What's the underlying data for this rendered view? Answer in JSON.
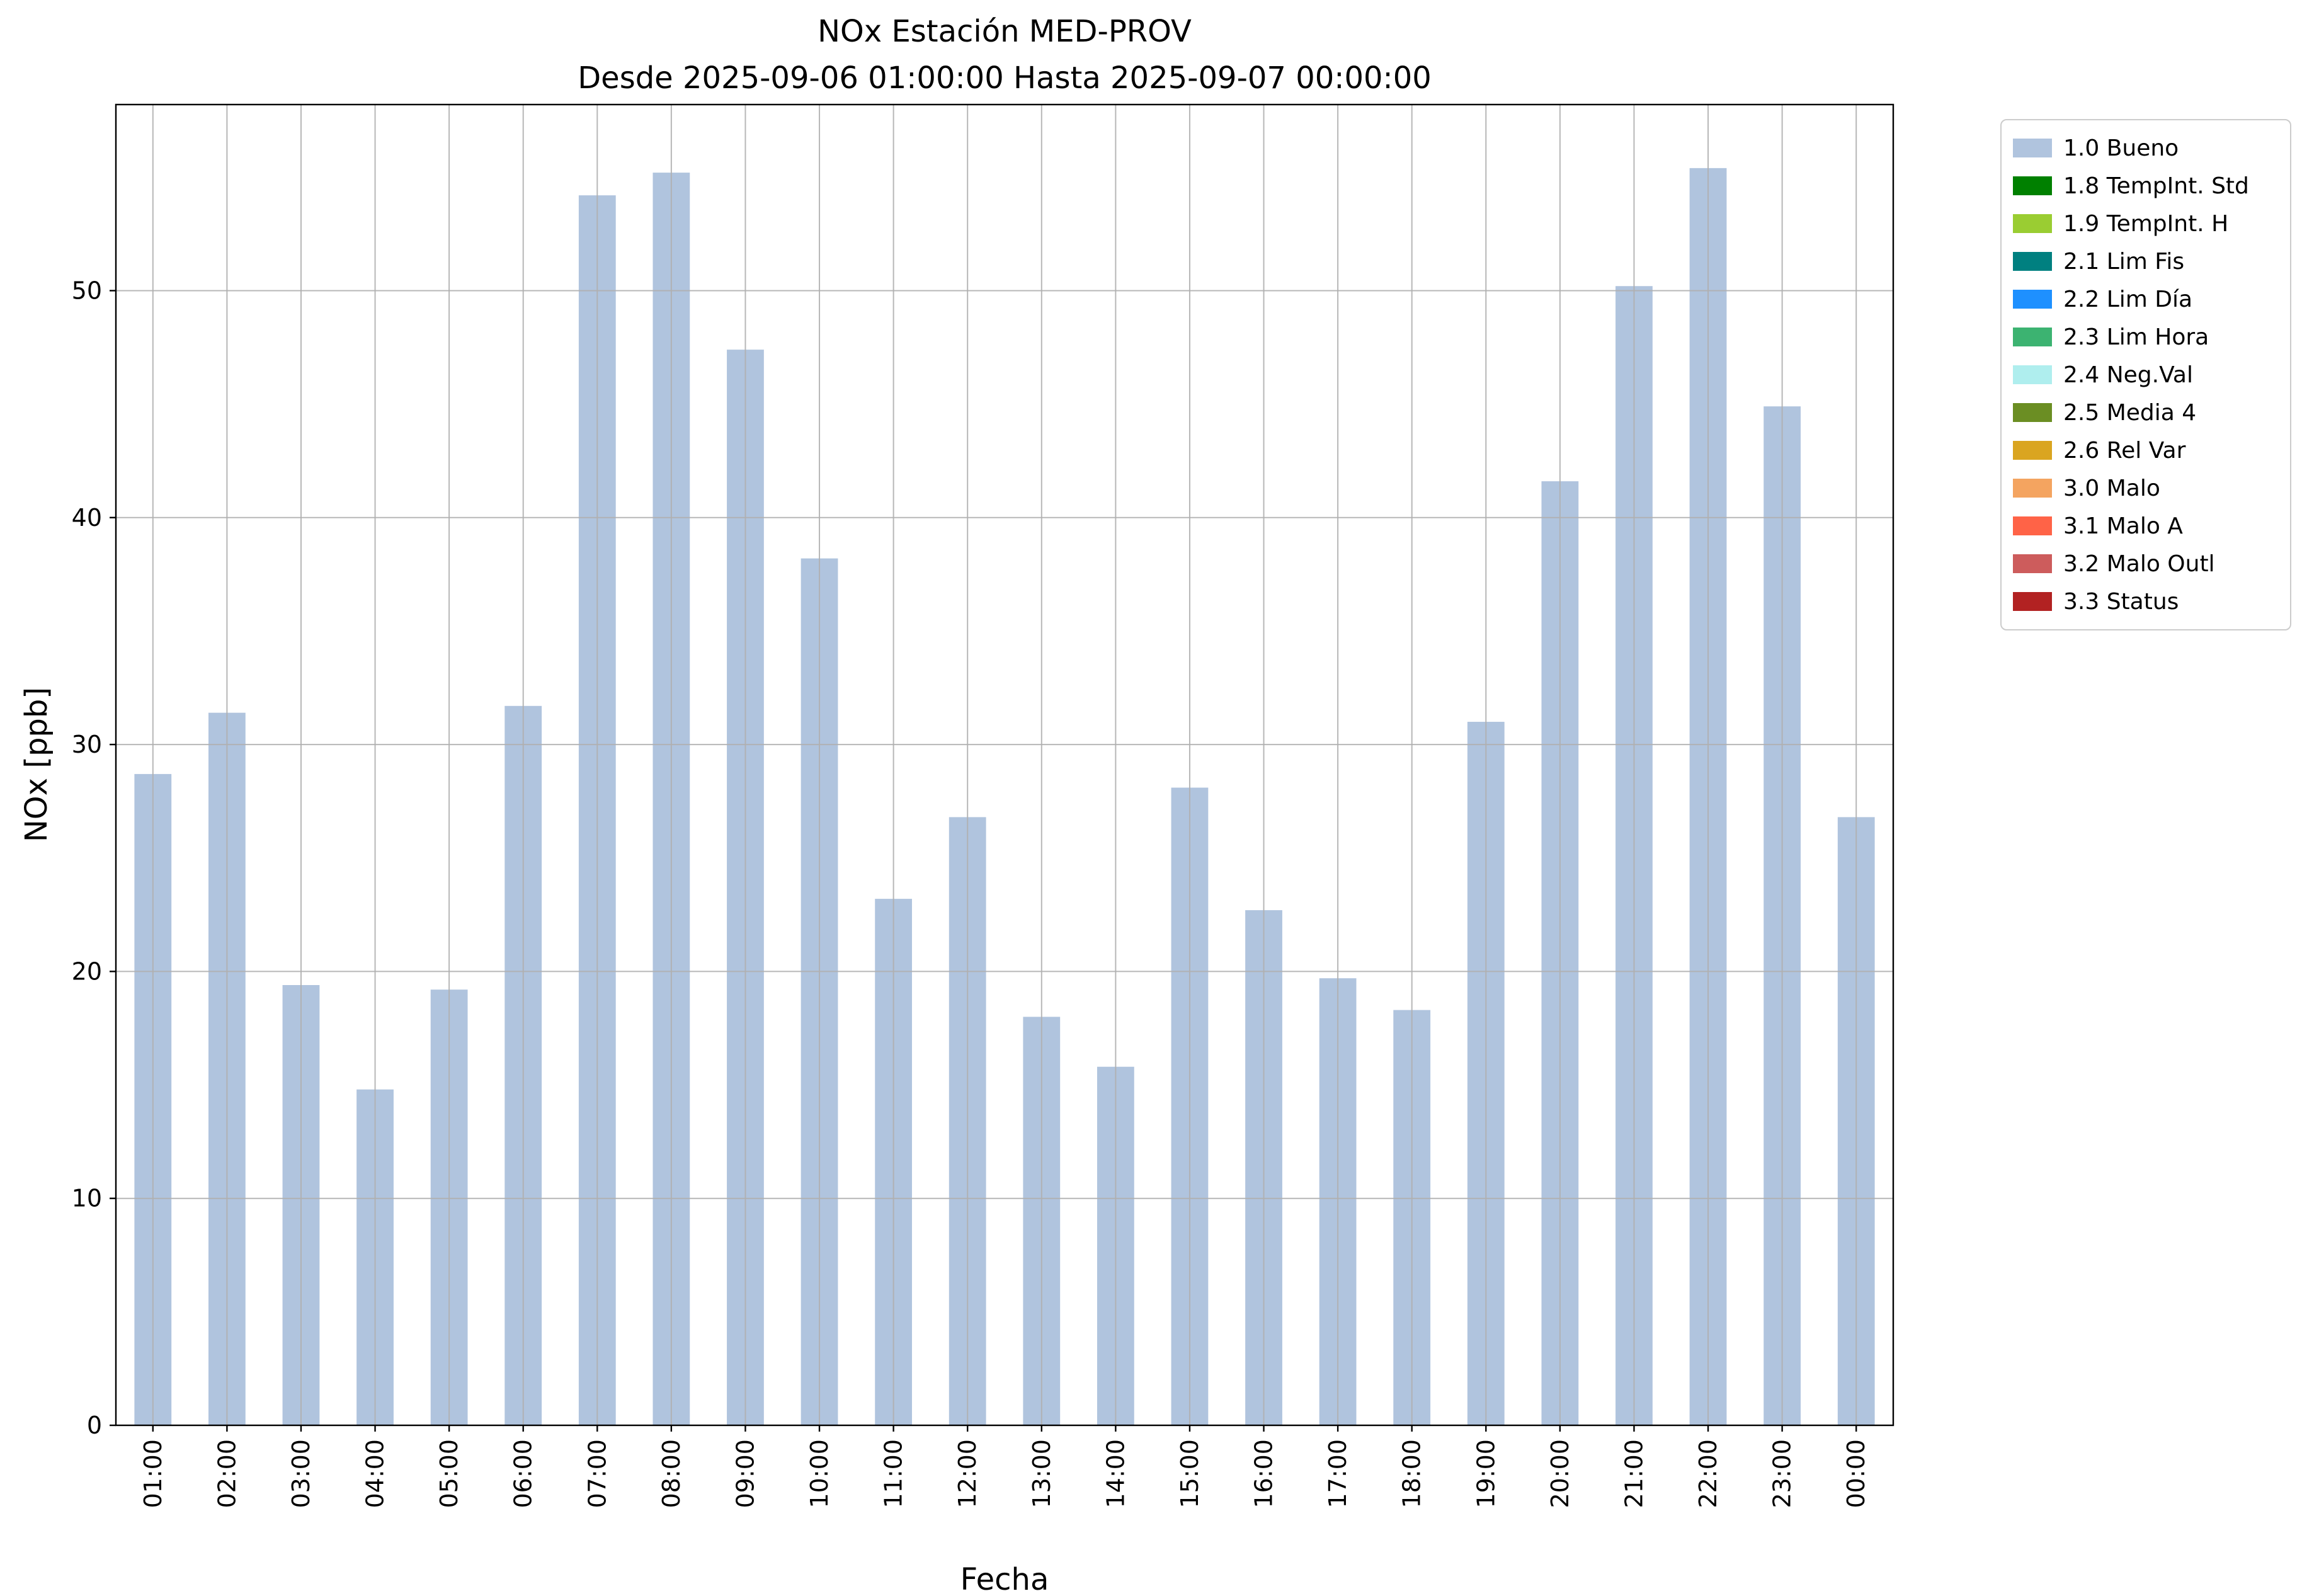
{
  "figure": {
    "title_line1": "NOx Estación MED-PROV",
    "title_line2": "Desde 2025-09-06 01:00:00 Hasta 2025-09-07 00:00:00"
  },
  "chart_data": {
    "type": "bar",
    "title": "NOx Estación MED-PROV\nDesde 2025-09-06 01:00:00 Hasta 2025-09-07 00:00:00",
    "xlabel": "Fecha",
    "ylabel": "NOx [ppb]",
    "categories": [
      "01:00",
      "02:00",
      "03:00",
      "04:00",
      "05:00",
      "06:00",
      "07:00",
      "08:00",
      "09:00",
      "10:00",
      "11:00",
      "12:00",
      "13:00",
      "14:00",
      "15:00",
      "16:00",
      "17:00",
      "18:00",
      "19:00",
      "20:00",
      "21:00",
      "22:00",
      "23:00",
      "00:00"
    ],
    "values": [
      28.7,
      31.4,
      19.4,
      14.8,
      19.2,
      31.7,
      54.2,
      55.2,
      47.4,
      38.2,
      23.2,
      26.8,
      18.0,
      15.8,
      28.1,
      22.7,
      19.7,
      18.3,
      31.0,
      41.6,
      50.2,
      55.4,
      44.9,
      26.8
    ],
    "ylim": [
      0,
      58.2
    ],
    "yticks": [
      0,
      10,
      20,
      30,
      40,
      50
    ],
    "grid": true,
    "bar_width_fraction": 0.5,
    "bar_color": "#b0c4de",
    "grid_color": "#b0b0b0",
    "axis_color": "#000000",
    "legend_position": "upper-right-outside",
    "legend": {
      "entries": [
        {
          "label": "1.0 Bueno",
          "color": "#b0c4de"
        },
        {
          "label": "1.8 TempInt. Std",
          "color": "#008000"
        },
        {
          "label": "1.9 TempInt. H",
          "color": "#9acd32"
        },
        {
          "label": "2.1 Lim Fis",
          "color": "#008080"
        },
        {
          "label": "2.2 Lim Día",
          "color": "#1e90ff"
        },
        {
          "label": "2.3 Lim Hora",
          "color": "#3cb371"
        },
        {
          "label": "2.4 Neg.Val",
          "color": "#afeeee"
        },
        {
          "label": "2.5 Media 4",
          "color": "#6b8e23"
        },
        {
          "label": "2.6 Rel Var",
          "color": "#daa520"
        },
        {
          "label": "3.0 Malo",
          "color": "#f4a460"
        },
        {
          "label": "3.1 Malo A",
          "color": "#ff6347"
        },
        {
          "label": "3.2 Malo Outl",
          "color": "#cd5c5c"
        },
        {
          "label": "3.3 Status",
          "color": "#b22222"
        }
      ]
    }
  }
}
